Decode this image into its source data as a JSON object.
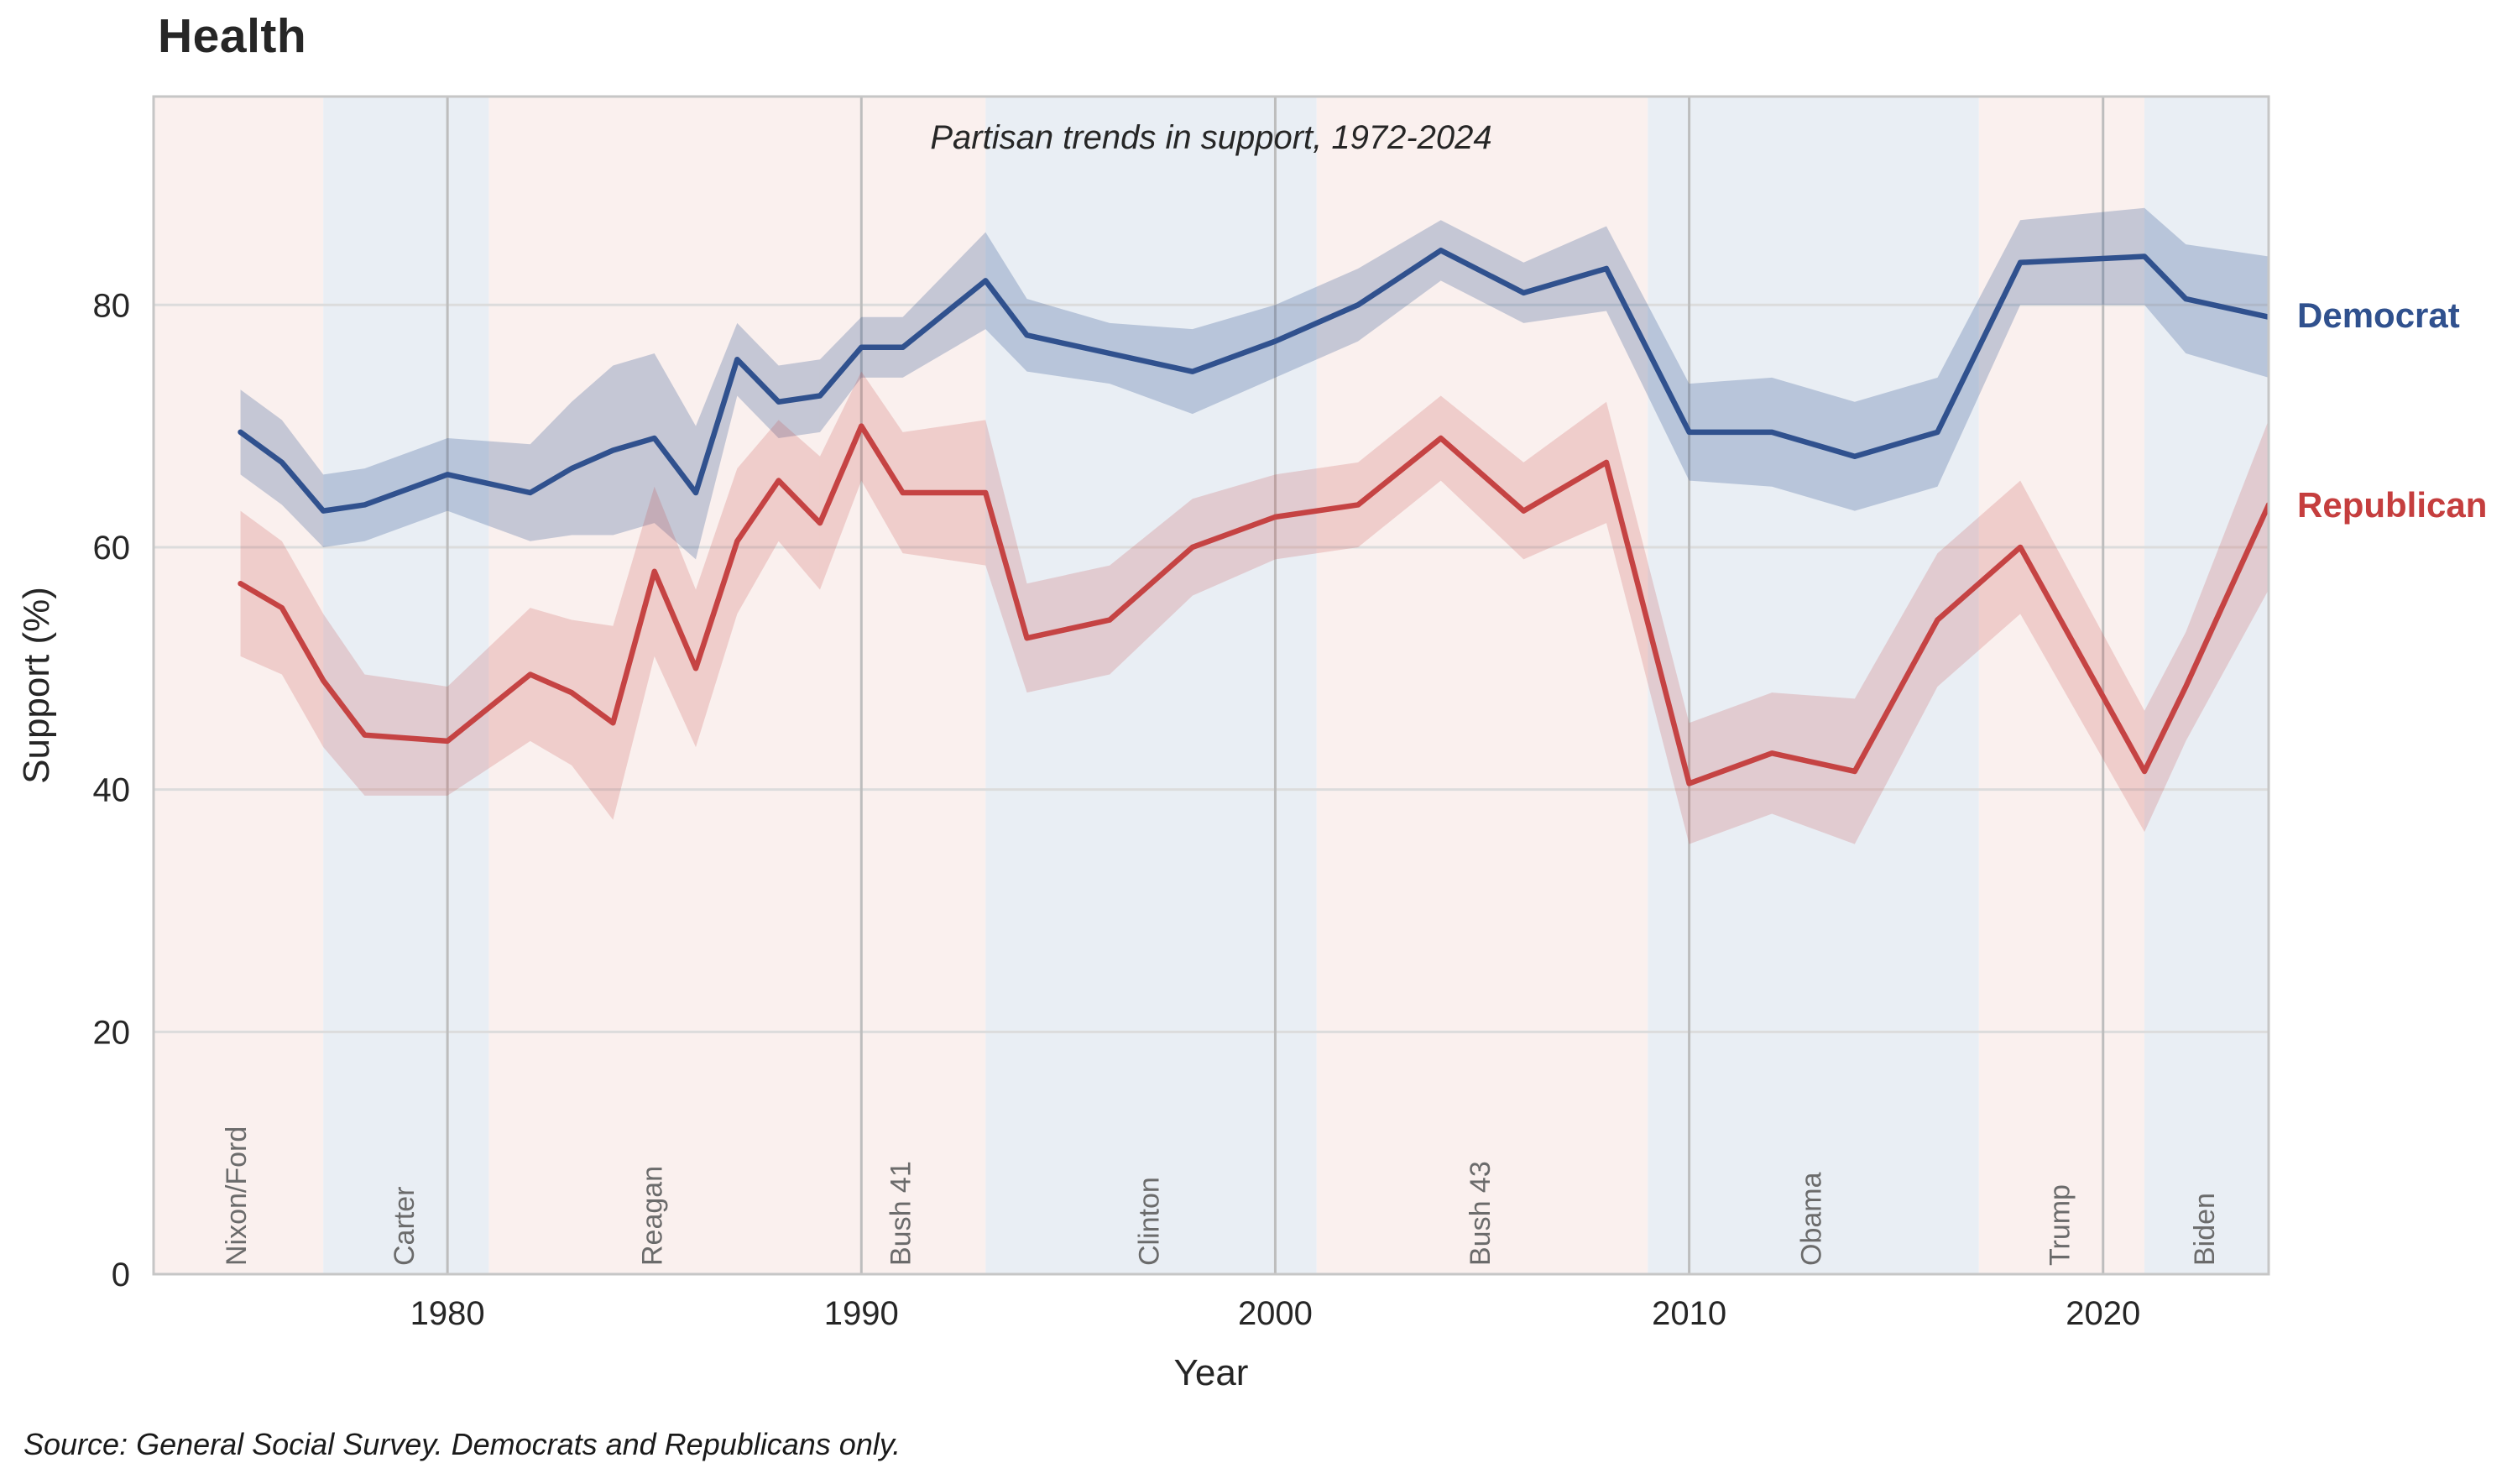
{
  "page": {
    "title": "Health",
    "subtitle": "Partisan trends in support, 1972-2024",
    "source": "Source: General Social Survey. Democrats and Republicans only."
  },
  "legend": {
    "position": "right-of-plot",
    "entries": [
      {
        "label": "Democrat",
        "color": "#30518e"
      },
      {
        "label": "Republican",
        "color": "#c53e3e"
      }
    ]
  },
  "chart_data": {
    "type": "line",
    "title": "Health",
    "subtitle": "Partisan trends in support, 1972-2024",
    "xlabel": "Year",
    "ylabel": "Support (%)",
    "xlim": [
      1972.9,
      2024
    ],
    "ylim": [
      0,
      97.2
    ],
    "xticks": [
      1980,
      1990,
      2000,
      2010,
      2020
    ],
    "yticks": [
      0,
      20,
      40,
      60,
      80
    ],
    "grid": {
      "horizontal_color": "#dcdcdc",
      "vertical_color": "#bdbdbd",
      "spine_color": "#c6c6c6"
    },
    "x": [
      1975,
      1976,
      1977,
      1978,
      1980,
      1982,
      1983,
      1984,
      1985,
      1986,
      1987,
      1988,
      1989,
      1990,
      1991,
      1993,
      1994,
      1996,
      1998,
      2000,
      2002,
      2004,
      2006,
      2008,
      2010,
      2012,
      2014,
      2016,
      2018,
      2021,
      2022,
      2024
    ],
    "series": [
      {
        "name": "Democrat",
        "color": "#30518e",
        "band_color": "rgba(48,81,142,0.26)",
        "values": [
          69.5,
          67,
          63,
          63.5,
          66,
          64.5,
          66.5,
          68,
          69,
          64.5,
          75.5,
          72,
          72.5,
          76.5,
          76.5,
          82,
          77.5,
          76,
          74.5,
          77,
          80,
          84.5,
          81,
          83,
          69.5,
          69.5,
          67.5,
          69.5,
          83.5,
          84,
          80.5,
          79
        ],
        "ci": [
          3.5,
          3.5,
          3,
          3,
          3,
          4,
          5.5,
          7,
          7,
          5.5,
          3,
          3,
          3,
          2.5,
          2.5,
          4,
          3,
          2.5,
          3.5,
          3,
          3,
          2.5,
          2.5,
          3.5,
          4,
          4.5,
          4.5,
          4.5,
          3.5,
          4,
          4.5,
          5
        ]
      },
      {
        "name": "Republican",
        "color": "#c54343",
        "band_color": "rgba(197,67,67,0.20)",
        "values": [
          57,
          55,
          49,
          44.5,
          44,
          49.5,
          48,
          45.5,
          58,
          50,
          60.5,
          65.5,
          62,
          70,
          64.5,
          64.5,
          52.5,
          54,
          60,
          62.5,
          63.5,
          69,
          63,
          67,
          40.5,
          43,
          41.5,
          54,
          60,
          41.5,
          48.5,
          63.5
        ],
        "ci": [
          6,
          5.5,
          5.5,
          5,
          4.5,
          5.5,
          6,
          8,
          7,
          6.5,
          6,
          5,
          5.5,
          4.5,
          5,
          6,
          4.5,
          4.5,
          4,
          3.5,
          3.5,
          3.5,
          4,
          5,
          5,
          5,
          6,
          5.5,
          5.5,
          5,
          4.5,
          7
        ]
      }
    ],
    "eras": [
      {
        "label": "Nixon/Ford",
        "start": 1972.9,
        "end": 1977,
        "party": "R"
      },
      {
        "label": "Carter",
        "start": 1977,
        "end": 1981,
        "party": "D"
      },
      {
        "label": "Reagan",
        "start": 1981,
        "end": 1989,
        "party": "R"
      },
      {
        "label": "Bush 41",
        "start": 1989,
        "end": 1993,
        "party": "R"
      },
      {
        "label": "Clinton",
        "start": 1993,
        "end": 2001,
        "party": "D"
      },
      {
        "label": "Bush 43",
        "start": 2001,
        "end": 2009,
        "party": "R"
      },
      {
        "label": "Obama",
        "start": 2009,
        "end": 2017,
        "party": "D"
      },
      {
        "label": "Trump",
        "start": 2017,
        "end": 2021,
        "party": "R"
      },
      {
        "label": "Biden",
        "start": 2021,
        "end": 2024,
        "party": "D"
      }
    ],
    "era_colors": {
      "R": "#faf0ee",
      "D": "#e9eef4"
    },
    "era_label_color": "#6b6b6b"
  }
}
